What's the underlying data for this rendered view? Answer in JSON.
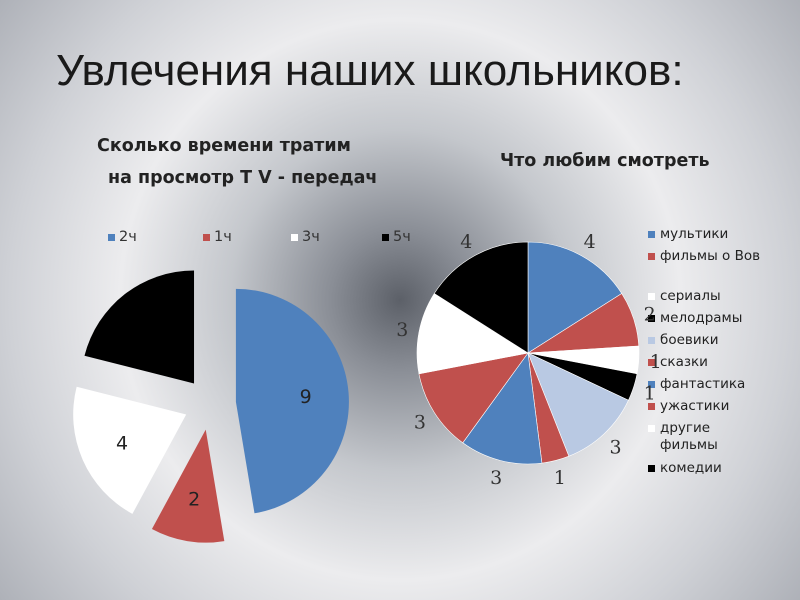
{
  "slide_title": "Увлечения наших школьников:",
  "chart_data": [
    {
      "type": "pie",
      "title_lines": [
        "Сколько времени тратим",
        "на просмотр Т V - передач"
      ],
      "legend_position": "top",
      "slices": [
        {
          "label": "2ч",
          "value": 9,
          "value_label": "9",
          "color": "#4f81bd"
        },
        {
          "label": "1ч",
          "value": 2,
          "value_label": "2",
          "color": "#c0504d"
        },
        {
          "label": "3ч",
          "value": 4,
          "value_label": "4",
          "color": "#ffffff"
        },
        {
          "label": "5ч",
          "value": 4,
          "value_label": "",
          "color": "#000000"
        }
      ],
      "exploded": true
    },
    {
      "type": "pie",
      "title": "Что любим смотреть",
      "legend_position": "right",
      "slices": [
        {
          "label": "мультики",
          "value": 4,
          "value_label": "4",
          "color": "#4f81bd"
        },
        {
          "label": "фильмы о Вов",
          "value": 2,
          "value_label": "2",
          "color": "#c0504d"
        },
        {
          "label": "сериалы",
          "value": 1,
          "value_label": "1",
          "color": "#ffffff"
        },
        {
          "label": "мелодрамы",
          "value": 1,
          "value_label": "1",
          "color": "#000000"
        },
        {
          "label": "боевики",
          "value": 3,
          "value_label": "3",
          "color": "#b9c9e3"
        },
        {
          "label": "сказки",
          "value": 1,
          "value_label": "1",
          "color": "#c0504d"
        },
        {
          "label": "фантастика",
          "value": 3,
          "value_label": "3",
          "color": "#4f81bd"
        },
        {
          "label": "ужастики",
          "value": 3,
          "value_label": "3",
          "color": "#c0504d"
        },
        {
          "label": "другие фильмы",
          "value": 3,
          "value_label": "3",
          "color": "#ffffff"
        },
        {
          "label": "комедии",
          "value": 4,
          "value_label": "4",
          "color": "#000000"
        }
      ]
    }
  ]
}
